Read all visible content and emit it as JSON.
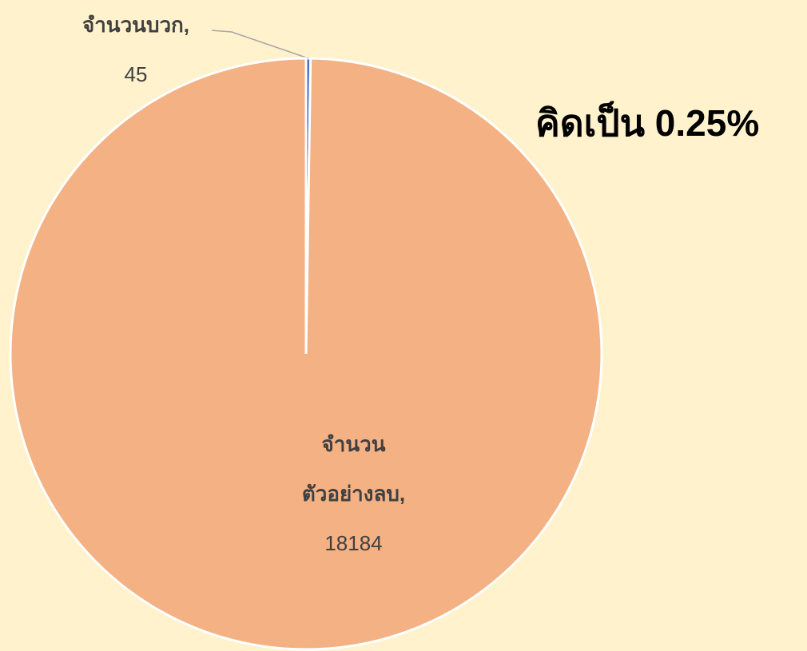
{
  "chart_data": {
    "type": "pie",
    "annotation": "คิดเป็น 0.25%",
    "categories": [
      "จำนวนบวก,",
      "จำนวนตัวอย่างลบ,"
    ],
    "values": [
      45,
      18184
    ],
    "colors": [
      "#4472c4",
      "#f4b183"
    ]
  }
}
